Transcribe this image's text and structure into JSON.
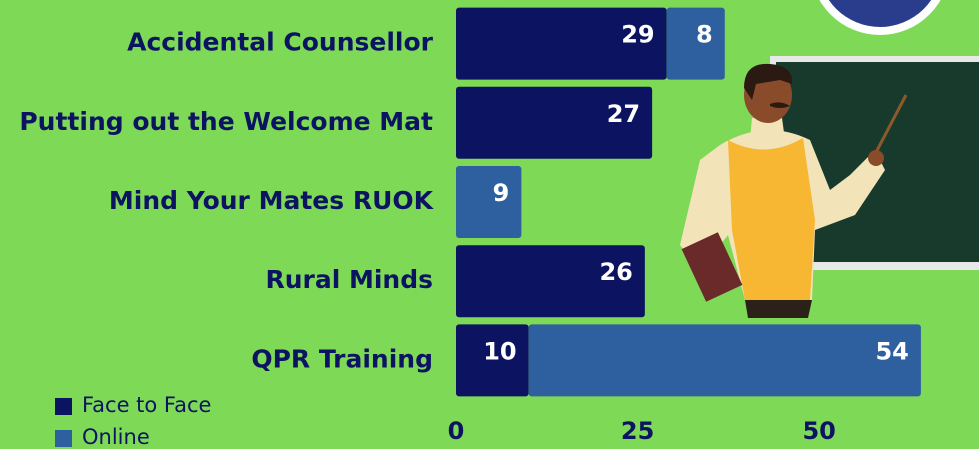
{
  "chart_data": {
    "type": "stacked-bar-horizontal",
    "categories": [
      "Accidental Counsellor",
      "Putting out the Welcome Mat",
      "Mind Your Mates RUOK",
      "Rural Minds",
      "QPR Training"
    ],
    "series": [
      {
        "name": "Face to Face",
        "color": "#0c1461",
        "values": [
          29,
          27,
          null,
          26,
          10
        ]
      },
      {
        "name": "Online",
        "color": "#2e5f9f",
        "values": [
          8,
          null,
          9,
          null,
          54
        ]
      }
    ],
    "xlim": [
      0,
      72
    ],
    "xticks": [
      0,
      25,
      50
    ],
    "grid": false,
    "legend": "bottom-left"
  }
}
